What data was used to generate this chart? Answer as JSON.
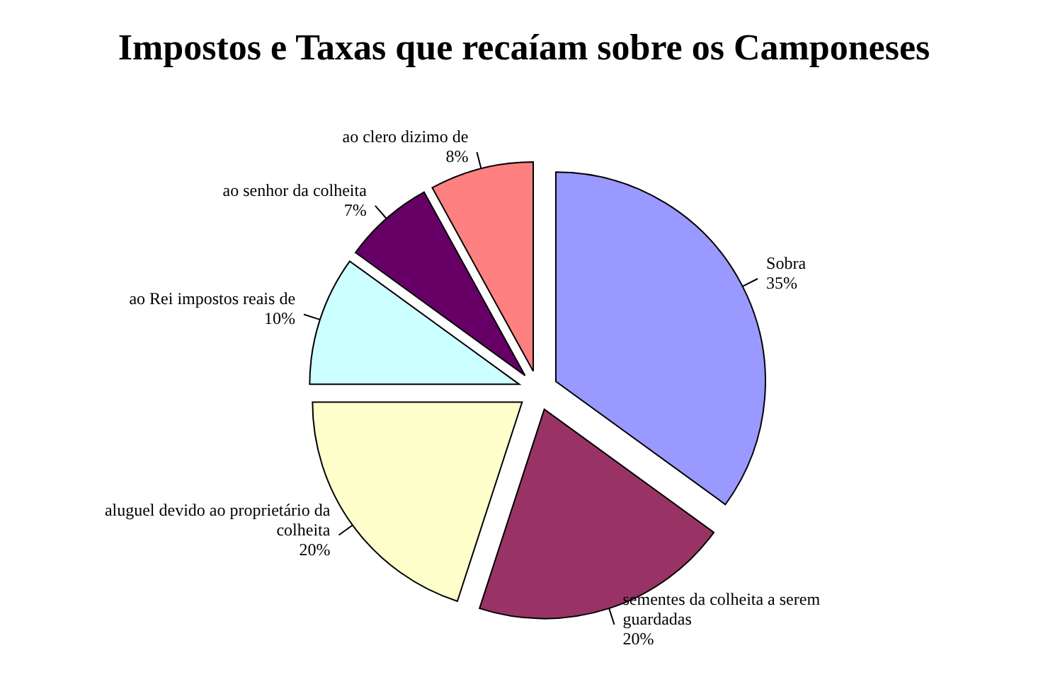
{
  "chart_data": {
    "type": "pie",
    "title": "Impostos e Taxas que recaíam sobre os Camponeses",
    "categories": [
      "Sobra",
      "sementes da colheita a serem guardadas",
      "aluguel devido ao proprietário da colheita",
      "ao Rei impostos reais de",
      "ao senhor da colheita",
      "ao clero dizimo de"
    ],
    "values": [
      35,
      20,
      20,
      10,
      7,
      8
    ],
    "value_labels": [
      "35%",
      "20%",
      "20%",
      "10%",
      "7%",
      "8%"
    ],
    "colors": [
      "#9999ff",
      "#993366",
      "#ffffcc",
      "#ccffff",
      "#660066",
      "#ff8080"
    ]
  }
}
